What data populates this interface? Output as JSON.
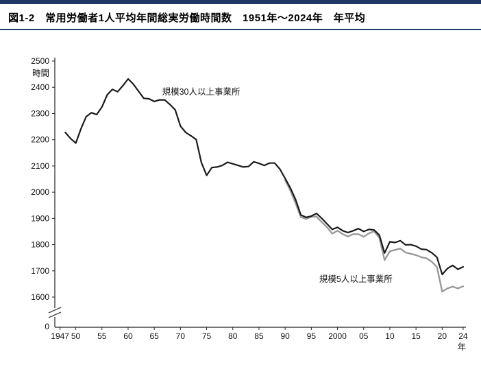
{
  "header": {
    "title": "図1-2　常用労働者1人平均年間総実労働時間数　1951年〜2024年　年平均",
    "accent_color": "#1f3864"
  },
  "chart_data": {
    "type": "line",
    "title": "図1-2　常用労働者1人平均年間総実労働時間数　1951年〜2024年　年平均",
    "ylabel": "時間",
    "xlabel": "年",
    "ylim_display": [
      1600,
      2500
    ],
    "axis_break": true,
    "grid": false,
    "legend_position": "inline-annotations",
    "y_axis": {
      "ticks": [
        2500,
        2400,
        2300,
        2200,
        2100,
        2000,
        1900,
        1800,
        1700,
        1600
      ],
      "zero_label": "0"
    },
    "x_axis": {
      "ticks": [
        {
          "year": 1947,
          "label": "1947"
        },
        {
          "year": 1950,
          "label": "50"
        },
        {
          "year": 1955,
          "label": "55"
        },
        {
          "year": 1960,
          "label": "60"
        },
        {
          "year": 1965,
          "label": "65"
        },
        {
          "year": 1970,
          "label": "70"
        },
        {
          "year": 1975,
          "label": "75"
        },
        {
          "year": 1980,
          "label": "80"
        },
        {
          "year": 1985,
          "label": "85"
        },
        {
          "year": 1990,
          "label": "90"
        },
        {
          "year": 1995,
          "label": "95"
        },
        {
          "year": 2000,
          "label": "2000"
        },
        {
          "year": 2005,
          "label": "05"
        },
        {
          "year": 2010,
          "label": "10"
        },
        {
          "year": 2015,
          "label": "15"
        },
        {
          "year": 2020,
          "label": "20"
        },
        {
          "year": 2024,
          "label": "24"
        }
      ]
    },
    "series": [
      {
        "name": "規模30人以上事業所",
        "color": "#1a1a1a",
        "width": 2.2,
        "points": [
          [
            1948,
            2228
          ],
          [
            1949,
            2205
          ],
          [
            1950,
            2187
          ],
          [
            1951,
            2242
          ],
          [
            1952,
            2288
          ],
          [
            1953,
            2303
          ],
          [
            1954,
            2296
          ],
          [
            1955,
            2325
          ],
          [
            1956,
            2371
          ],
          [
            1957,
            2392
          ],
          [
            1958,
            2383
          ],
          [
            1959,
            2406
          ],
          [
            1960,
            2432
          ],
          [
            1961,
            2412
          ],
          [
            1962,
            2385
          ],
          [
            1963,
            2358
          ],
          [
            1964,
            2356
          ],
          [
            1965,
            2346
          ],
          [
            1966,
            2352
          ],
          [
            1967,
            2352
          ],
          [
            1968,
            2334
          ],
          [
            1969,
            2314
          ],
          [
            1970,
            2252
          ],
          [
            1971,
            2228
          ],
          [
            1972,
            2215
          ],
          [
            1973,
            2201
          ],
          [
            1974,
            2113
          ],
          [
            1975,
            2064
          ],
          [
            1976,
            2094
          ],
          [
            1977,
            2096
          ],
          [
            1978,
            2102
          ],
          [
            1979,
            2114
          ],
          [
            1980,
            2108
          ],
          [
            1981,
            2102
          ],
          [
            1982,
            2096
          ],
          [
            1983,
            2098
          ],
          [
            1984,
            2116
          ],
          [
            1985,
            2110
          ],
          [
            1986,
            2102
          ],
          [
            1987,
            2111
          ],
          [
            1988,
            2111
          ],
          [
            1989,
            2088
          ],
          [
            1990,
            2052
          ],
          [
            1991,
            2016
          ],
          [
            1992,
            1972
          ],
          [
            1993,
            1913
          ],
          [
            1994,
            1904
          ],
          [
            1995,
            1909
          ],
          [
            1996,
            1919
          ],
          [
            1997,
            1900
          ],
          [
            1998,
            1879
          ],
          [
            1999,
            1858
          ],
          [
            2000,
            1866
          ],
          [
            2001,
            1853
          ],
          [
            2002,
            1846
          ],
          [
            2003,
            1853
          ],
          [
            2004,
            1861
          ],
          [
            2005,
            1850
          ],
          [
            2006,
            1858
          ],
          [
            2007,
            1856
          ],
          [
            2008,
            1836
          ],
          [
            2009,
            1768
          ],
          [
            2010,
            1811
          ],
          [
            2011,
            1808
          ],
          [
            2012,
            1815
          ],
          [
            2013,
            1799
          ],
          [
            2014,
            1800
          ],
          [
            2015,
            1794
          ],
          [
            2016,
            1783
          ],
          [
            2017,
            1781
          ],
          [
            2018,
            1769
          ],
          [
            2019,
            1752
          ],
          [
            2020,
            1686
          ],
          [
            2021,
            1709
          ],
          [
            2022,
            1721
          ],
          [
            2023,
            1706
          ],
          [
            2024,
            1715
          ]
        ]
      },
      {
        "name": "規模5人以上事業所",
        "color": "#999999",
        "width": 2.4,
        "points": [
          [
            1990,
            2046
          ],
          [
            1991,
            2006
          ],
          [
            1992,
            1958
          ],
          [
            1993,
            1905
          ],
          [
            1994,
            1898
          ],
          [
            1995,
            1906
          ],
          [
            1996,
            1907
          ],
          [
            1997,
            1886
          ],
          [
            1998,
            1866
          ],
          [
            1999,
            1842
          ],
          [
            2000,
            1853
          ],
          [
            2001,
            1840
          ],
          [
            2002,
            1831
          ],
          [
            2003,
            1840
          ],
          [
            2004,
            1840
          ],
          [
            2005,
            1830
          ],
          [
            2006,
            1843
          ],
          [
            2007,
            1851
          ],
          [
            2008,
            1826
          ],
          [
            2009,
            1741
          ],
          [
            2010,
            1775
          ],
          [
            2011,
            1780
          ],
          [
            2012,
            1785
          ],
          [
            2013,
            1770
          ],
          [
            2014,
            1765
          ],
          [
            2015,
            1760
          ],
          [
            2016,
            1752
          ],
          [
            2017,
            1748
          ],
          [
            2018,
            1735
          ],
          [
            2019,
            1714
          ],
          [
            2020,
            1621
          ],
          [
            2021,
            1633
          ],
          [
            2022,
            1640
          ],
          [
            2023,
            1633
          ],
          [
            2024,
            1641
          ]
        ]
      }
    ],
    "annotations": [
      {
        "text": "規模30人以上事業所",
        "year": 1966.5,
        "value": 2372
      },
      {
        "text": "規模5人以上事業所",
        "year": 1996.5,
        "value": 1657
      }
    ]
  }
}
